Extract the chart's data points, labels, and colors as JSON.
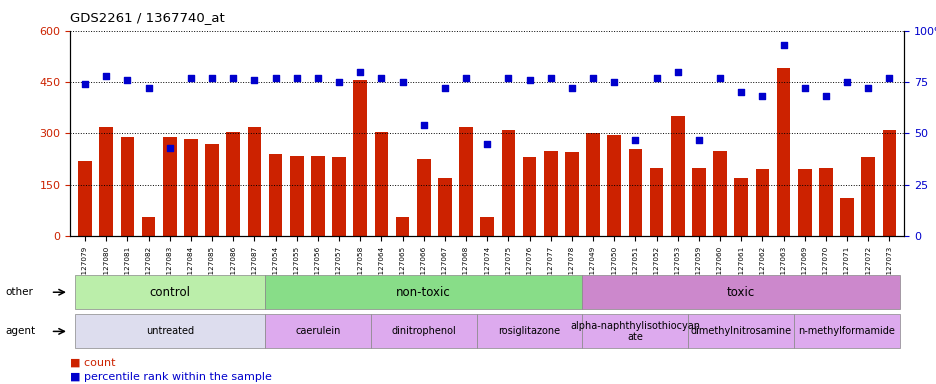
{
  "title": "GDS2261 / 1367740_at",
  "samples": [
    "GSM127079",
    "GSM127080",
    "GSM127081",
    "GSM127082",
    "GSM127083",
    "GSM127084",
    "GSM127085",
    "GSM127086",
    "GSM127087",
    "GSM127054",
    "GSM127055",
    "GSM127056",
    "GSM127057",
    "GSM127058",
    "GSM127064",
    "GSM127065",
    "GSM127066",
    "GSM127067",
    "GSM127068",
    "GSM127074",
    "GSM127075",
    "GSM127076",
    "GSM127077",
    "GSM127078",
    "GSM127049",
    "GSM127050",
    "GSM127051",
    "GSM127052",
    "GSM127053",
    "GSM127059",
    "GSM127060",
    "GSM127061",
    "GSM127062",
    "GSM127063",
    "GSM127069",
    "GSM127070",
    "GSM127071",
    "GSM127072",
    "GSM127073"
  ],
  "counts": [
    220,
    320,
    290,
    55,
    290,
    285,
    270,
    305,
    320,
    240,
    235,
    235,
    230,
    455,
    305,
    55,
    225,
    170,
    320,
    55,
    310,
    230,
    250,
    245,
    300,
    295,
    255,
    200,
    350,
    200,
    250,
    170,
    195,
    490,
    195,
    200,
    110,
    230,
    310
  ],
  "percentiles": [
    74,
    78,
    76,
    72,
    43,
    77,
    77,
    77,
    76,
    77,
    77,
    77,
    75,
    80,
    77,
    75,
    54,
    72,
    77,
    45,
    77,
    76,
    77,
    72,
    77,
    75,
    47,
    77,
    80,
    47,
    77,
    70,
    68,
    93,
    72,
    68,
    75,
    72,
    77
  ],
  "bar_color": "#cc2200",
  "dot_color": "#0000cc",
  "ylim_left": [
    0,
    600
  ],
  "ylim_right": [
    0,
    100
  ],
  "yticks_left": [
    0,
    150,
    300,
    450,
    600
  ],
  "yticks_right": [
    0,
    25,
    50,
    75,
    100
  ],
  "group_others": [
    {
      "label": "control",
      "start": 0,
      "end": 9,
      "color": "#bbeeaa"
    },
    {
      "label": "non-toxic",
      "start": 9,
      "end": 24,
      "color": "#88dd88"
    },
    {
      "label": "toxic",
      "start": 24,
      "end": 39,
      "color": "#cc88cc"
    }
  ],
  "group_agents": [
    {
      "label": "untreated",
      "start": 0,
      "end": 9,
      "color": "#ddddee"
    },
    {
      "label": "caerulein",
      "start": 9,
      "end": 14,
      "color": "#ddaaee"
    },
    {
      "label": "dinitrophenol",
      "start": 14,
      "end": 19,
      "color": "#ddaaee"
    },
    {
      "label": "rosiglitazone",
      "start": 19,
      "end": 24,
      "color": "#ddaaee"
    },
    {
      "label": "alpha-naphthylisothiocyan\nate",
      "start": 24,
      "end": 29,
      "color": "#ddaaee"
    },
    {
      "label": "dimethylnitrosamine",
      "start": 29,
      "end": 34,
      "color": "#ddaaee"
    },
    {
      "label": "n-methylformamide",
      "start": 34,
      "end": 39,
      "color": "#ddaaee"
    }
  ]
}
